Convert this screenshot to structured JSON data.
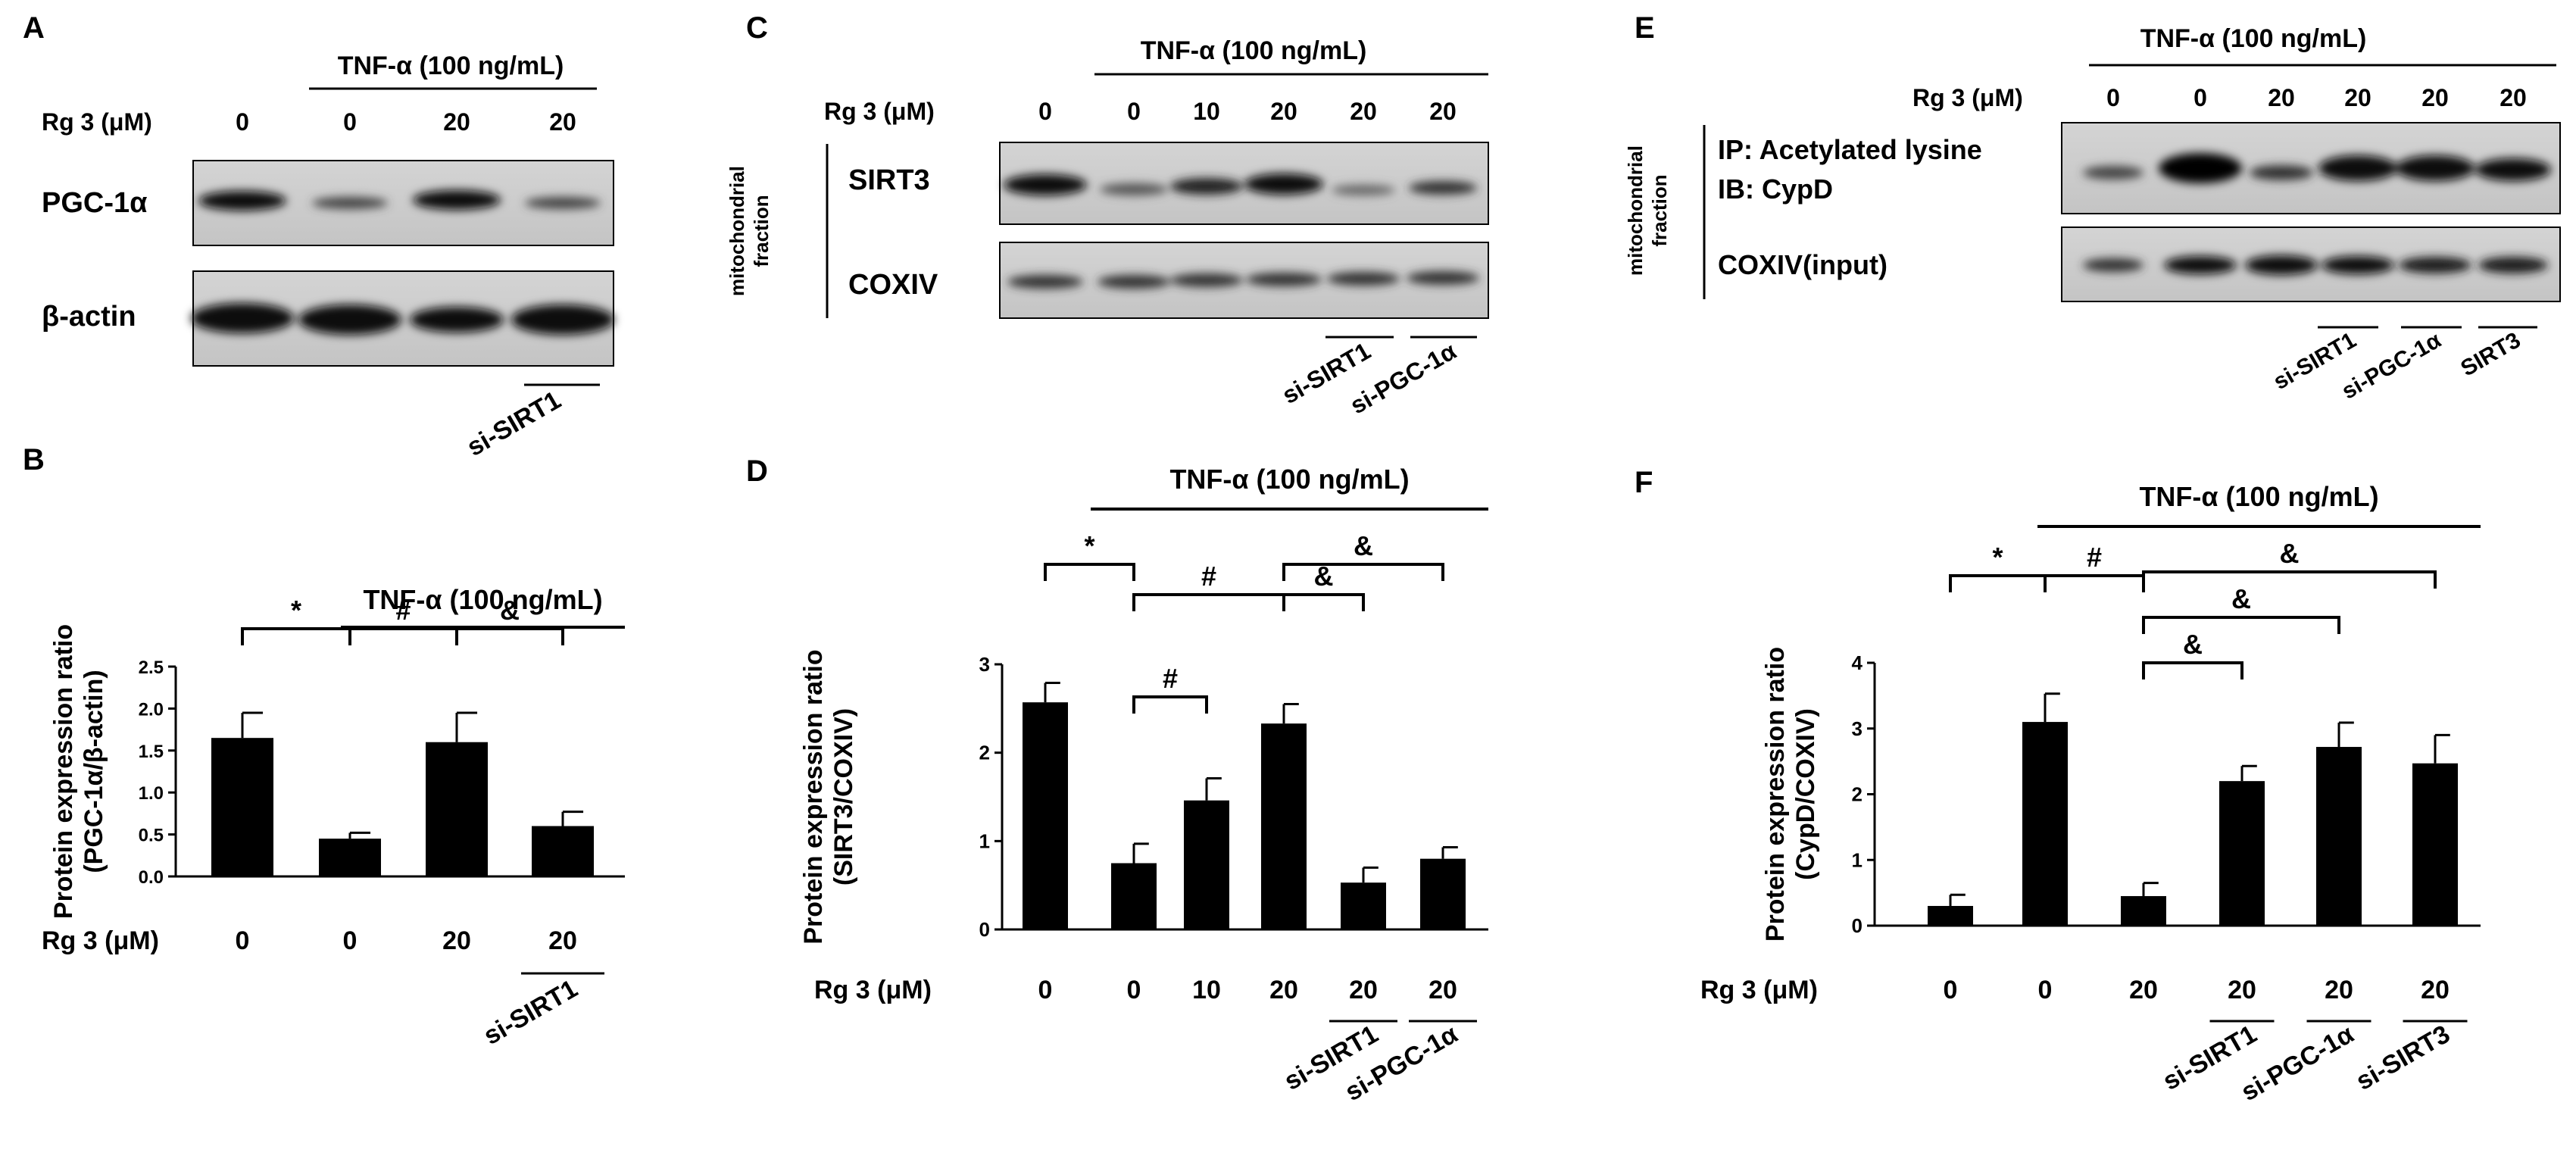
{
  "panels": {
    "A": {
      "letter": "A",
      "treatment": "TNF-α (100 ng/mL)",
      "row_label": "Rg 3 (μM)",
      "doses": [
        "0",
        "0",
        "20",
        "20"
      ],
      "band_labels": [
        "PGC-1α",
        "β-actin"
      ],
      "sirna": [
        "si-SIRT1"
      ]
    },
    "C": {
      "letter": "C",
      "treatment": "TNF-α (100 ng/mL)",
      "row_label": "Rg 3 (μM)",
      "doses": [
        "0",
        "0",
        "10",
        "20",
        "20",
        "20"
      ],
      "fraction_label": [
        "mitochondrial",
        "fraction"
      ],
      "band_labels": [
        "SIRT3",
        "COXIV"
      ],
      "sirna": [
        "si-SIRT1",
        "si-PGC-1α"
      ]
    },
    "E": {
      "letter": "E",
      "treatment": "TNF-α (100 ng/mL)",
      "row_label": "Rg 3 (μM)",
      "doses": [
        "0",
        "0",
        "20",
        "20",
        "20",
        "20"
      ],
      "fraction_label": [
        "mitochondrial",
        "fraction"
      ],
      "band_labels": [
        "IP: Acetylated lysine",
        "IB: CypD",
        "COXIV(input)"
      ],
      "sirna": [
        "si-SIRT1",
        "si-PGC-1α",
        "SIRT3"
      ]
    }
  },
  "chart_data": [
    {
      "type": "bar",
      "panel": "B",
      "treatment": "TNF-α (100 ng/mL)",
      "xlabel": "Rg 3 (μM)",
      "ylabel": [
        "Protein expression ratio",
        "(PGC-1α/β-actin)"
      ],
      "categories": [
        "0",
        "0",
        "20",
        "20"
      ],
      "sirna": [
        {
          "label": "si-SIRT1",
          "bar": 3
        }
      ],
      "values": [
        1.65,
        0.45,
        1.6,
        0.6
      ],
      "errors": [
        0.3,
        0.07,
        0.35,
        0.17
      ],
      "ylim": [
        0,
        2.5
      ],
      "yticks": [
        "0.0",
        "0.5",
        "1.0",
        "1.5",
        "2.0",
        "2.5"
      ],
      "significance": [
        {
          "from": 0,
          "to": 1,
          "symbol": "*"
        },
        {
          "from": 1,
          "to": 2,
          "symbol": "#"
        },
        {
          "from": 2,
          "to": 3,
          "symbol": "&"
        }
      ]
    },
    {
      "type": "bar",
      "panel": "D",
      "treatment": "TNF-α (100 ng/mL)",
      "xlabel": "Rg 3 (μM)",
      "ylabel": [
        "Protein expression ratio",
        "(SIRT3/COXIV)"
      ],
      "categories": [
        "0",
        "0",
        "10",
        "20",
        "20",
        "20"
      ],
      "sirna": [
        {
          "label": "si-SIRT1",
          "bar": 4
        },
        {
          "label": "si-PGC-1α",
          "bar": 5
        }
      ],
      "values": [
        2.57,
        0.75,
        1.46,
        2.33,
        0.53,
        0.8
      ],
      "errors": [
        0.22,
        0.22,
        0.25,
        0.22,
        0.17,
        0.13
      ],
      "ylim": [
        0,
        3
      ],
      "yticks": [
        "0",
        "1",
        "2",
        "3"
      ],
      "significance": [
        {
          "from": 0,
          "to": 1,
          "symbol": "*"
        },
        {
          "from": 1,
          "to": 3,
          "symbol": "#"
        },
        {
          "from": 1,
          "to": 2,
          "symbol": "#"
        },
        {
          "from": 3,
          "to": 4,
          "symbol": "&"
        },
        {
          "from": 3,
          "to": 5,
          "symbol": "&"
        }
      ]
    },
    {
      "type": "bar",
      "panel": "F",
      "treatment": "TNF-α (100 ng/mL)",
      "xlabel": "Rg 3 (μM)",
      "ylabel": [
        "Protein expression ratio",
        "(CypD/COXIV)"
      ],
      "categories": [
        "0",
        "0",
        "20",
        "20",
        "20",
        "20"
      ],
      "sirna": [
        {
          "label": "si-SIRT1",
          "bar": 3
        },
        {
          "label": "si-PGC-1α",
          "bar": 4
        },
        {
          "label": "si-SIRT3",
          "bar": 5
        }
      ],
      "values": [
        0.3,
        3.1,
        0.45,
        2.2,
        2.72,
        2.47
      ],
      "errors": [
        0.17,
        0.43,
        0.2,
        0.23,
        0.37,
        0.43
      ],
      "ylim": [
        0,
        4
      ],
      "yticks": [
        "0",
        "1",
        "2",
        "3",
        "4"
      ],
      "significance": [
        {
          "from": 0,
          "to": 1,
          "symbol": "*"
        },
        {
          "from": 1,
          "to": 2,
          "symbol": "#"
        },
        {
          "from": 2,
          "to": 3,
          "symbol": "&"
        },
        {
          "from": 2,
          "to": 4,
          "symbol": "&"
        },
        {
          "from": 2,
          "to": 5,
          "symbol": "&"
        }
      ]
    }
  ]
}
